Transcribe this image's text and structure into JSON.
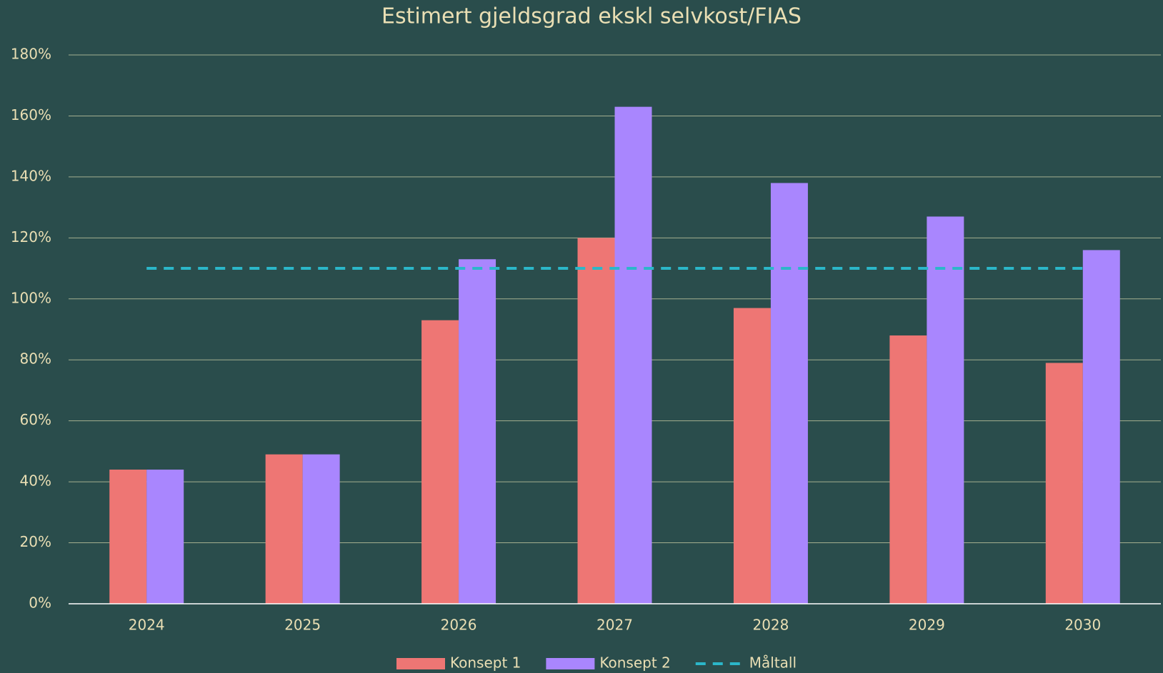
{
  "chart_data": {
    "type": "bar",
    "title": "Estimert gjeldsgrad ekskl selvkost/FIAS",
    "categories": [
      "2024",
      "2025",
      "2026",
      "2027",
      "2028",
      "2029",
      "2030"
    ],
    "series": [
      {
        "name": "Konsept 1",
        "color": "#ee7674",
        "values": [
          44,
          49,
          93,
          120,
          97,
          88,
          79
        ]
      },
      {
        "name": "Konsept 2",
        "color": "#a986fe",
        "values": [
          44,
          49,
          113,
          163,
          138,
          127,
          116
        ]
      },
      {
        "name": "Måltall",
        "color": "#2bb7c9",
        "type": "line",
        "dashed": true,
        "values": [
          110,
          110,
          110,
          110,
          110,
          110,
          110
        ]
      }
    ],
    "ylim": [
      0,
      180
    ],
    "yticks": [
      {
        "value": 0,
        "label": "0%"
      },
      {
        "value": 20,
        "label": "20%"
      },
      {
        "value": 40,
        "label": "40%"
      },
      {
        "value": 60,
        "label": "60%"
      },
      {
        "value": 80,
        "label": "80%"
      },
      {
        "value": 100,
        "label": "100%"
      },
      {
        "value": 120,
        "label": "120%"
      },
      {
        "value": 140,
        "label": "140%"
      },
      {
        "value": 160,
        "label": "160%"
      },
      {
        "value": 180,
        "label": "180%"
      }
    ],
    "grid": true,
    "legend": "bottom"
  }
}
